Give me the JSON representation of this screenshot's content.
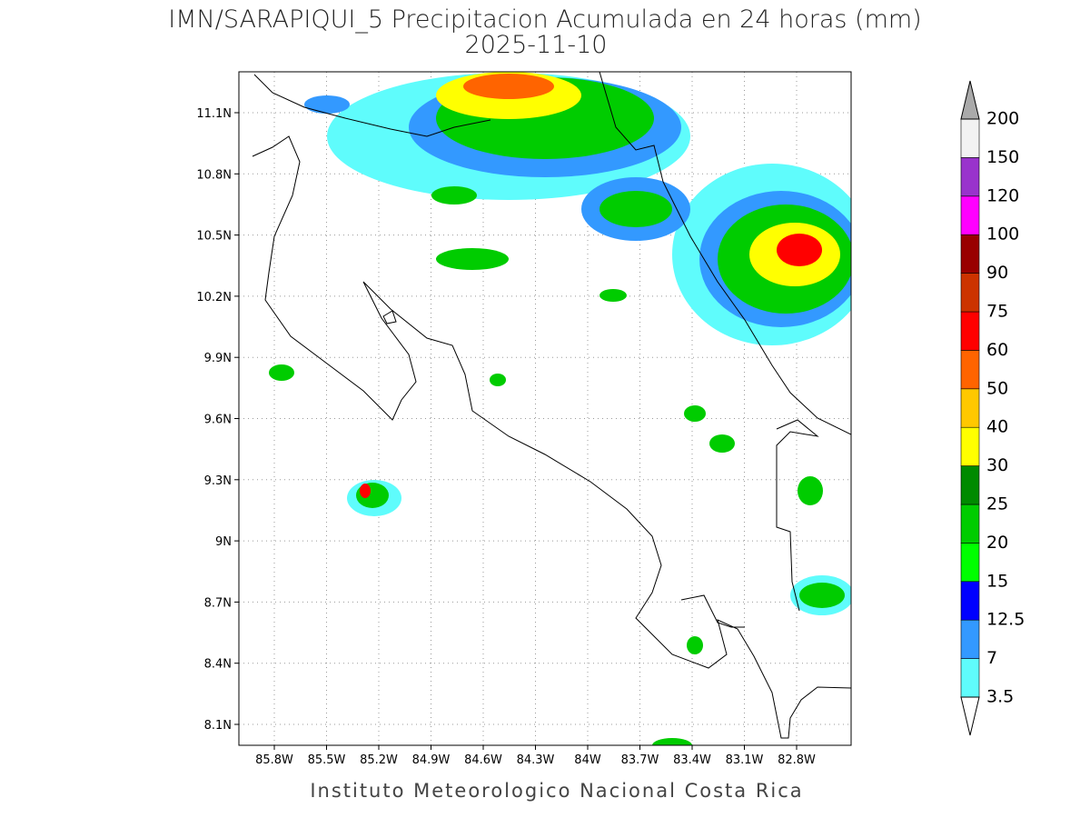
{
  "header": {
    "title": "IMN/SARAPIQUI_5 Precipitacion Acumulada en 24 horas (mm)",
    "date": "2025-11-10"
  },
  "map": {
    "lat_labels": [
      "11.1N",
      "10.8N",
      "10.5N",
      "10.2N",
      "9.9N",
      "9.6N",
      "9.3N",
      "9N",
      "8.7N",
      "8.4N",
      "8.1N"
    ],
    "lon_labels": [
      "85.8W",
      "85.5W",
      "85.2W",
      "84.9W",
      "84.6W",
      "84.3W",
      "84W",
      "83.7W",
      "83.4W",
      "83.1W",
      "82.8W"
    ]
  },
  "colorbar": {
    "levels": [
      3.5,
      7,
      12.5,
      15,
      20,
      25,
      30,
      40,
      50,
      60,
      75,
      90,
      100,
      120,
      150,
      200
    ],
    "colors": [
      "#5ffcfc",
      "#3399ff",
      "#0000ff",
      "#00ff00",
      "#00cc00",
      "#008a00",
      "#ffff00",
      "#ffc800",
      "#ff6400",
      "#ff0000",
      "#cc3300",
      "#990000",
      "#ff00ff",
      "#9933cc",
      "#f2f2f2"
    ],
    "under_color": "#ffffff",
    "over_color": "#aaaaaa"
  },
  "footer": "Instituto Meteorologico Nacional Costa Rica"
}
